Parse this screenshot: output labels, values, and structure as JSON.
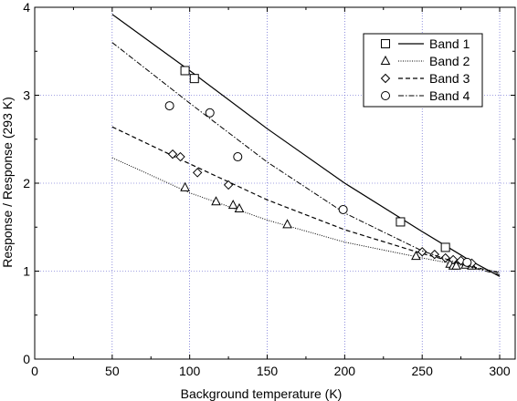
{
  "chart_data": {
    "type": "line",
    "title": "",
    "xlabel": "Background temperature (K)",
    "ylabel": "Response / Response (293 K)",
    "xlim": [
      0,
      310
    ],
    "ylim": [
      0,
      4
    ],
    "xticks": [
      0,
      50,
      100,
      150,
      200,
      250,
      300
    ],
    "yticks": [
      0,
      1,
      2,
      3,
      4
    ],
    "grid": "dotted at y ticks and x ticks",
    "legend_position": "top-right",
    "series": [
      {
        "name": "Band 1",
        "marker": "square",
        "line_style": "solid",
        "points": [
          [
            97,
            3.28
          ],
          [
            103,
            3.19
          ],
          [
            236,
            1.56
          ],
          [
            265,
            1.27
          ]
        ],
        "fit": [
          [
            50,
            3.92
          ],
          [
            100,
            3.28
          ],
          [
            150,
            2.62
          ],
          [
            200,
            2.0
          ],
          [
            250,
            1.45
          ],
          [
            280,
            1.13
          ],
          [
            300,
            0.94
          ]
        ]
      },
      {
        "name": "Band 2",
        "marker": "triangle",
        "line_style": "dotted",
        "points": [
          [
            97,
            1.95
          ],
          [
            117,
            1.79
          ],
          [
            128,
            1.75
          ],
          [
            132,
            1.71
          ],
          [
            163,
            1.53
          ],
          [
            246,
            1.17
          ],
          [
            268,
            1.08
          ],
          [
            270,
            1.06
          ],
          [
            272,
            1.06
          ],
          [
            278,
            1.07
          ],
          [
            282,
            1.06
          ]
        ],
        "fit": [
          [
            50,
            2.29
          ],
          [
            100,
            1.89
          ],
          [
            150,
            1.58
          ],
          [
            200,
            1.33
          ],
          [
            250,
            1.15
          ],
          [
            280,
            1.05
          ],
          [
            300,
            0.99
          ]
        ]
      },
      {
        "name": "Band 3",
        "marker": "diamond",
        "line_style": "dashed",
        "points": [
          [
            89,
            2.33
          ],
          [
            94,
            2.3
          ],
          [
            105,
            2.12
          ],
          [
            125,
            1.98
          ],
          [
            250,
            1.22
          ],
          [
            258,
            1.19
          ],
          [
            265,
            1.15
          ],
          [
            270,
            1.13
          ],
          [
            275,
            1.12
          ],
          [
            282,
            1.09
          ]
        ],
        "fit": [
          [
            50,
            2.64
          ],
          [
            100,
            2.22
          ],
          [
            150,
            1.81
          ],
          [
            200,
            1.47
          ],
          [
            250,
            1.2
          ],
          [
            280,
            1.06
          ],
          [
            300,
            0.98
          ]
        ]
      },
      {
        "name": "Band 4",
        "marker": "circle",
        "line_style": "dash-dot",
        "points": [
          [
            87,
            2.88
          ],
          [
            113,
            2.8
          ],
          [
            131,
            2.3
          ],
          [
            199,
            1.7
          ],
          [
            279,
            1.1
          ]
        ],
        "fit": [
          [
            50,
            3.6
          ],
          [
            100,
            2.91
          ],
          [
            150,
            2.24
          ],
          [
            200,
            1.66
          ],
          [
            250,
            1.23
          ],
          [
            280,
            1.05
          ],
          [
            300,
            0.96
          ]
        ]
      }
    ]
  }
}
